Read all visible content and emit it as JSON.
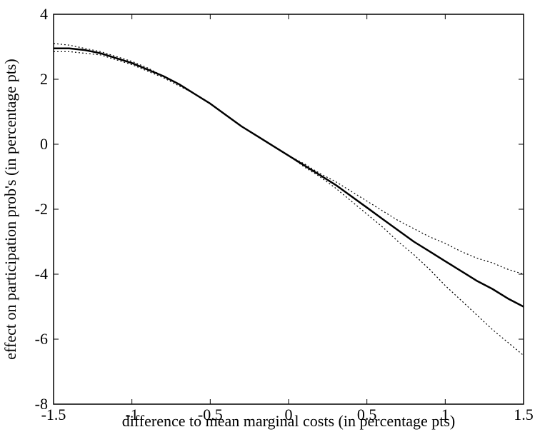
{
  "chart_data": {
    "type": "line",
    "title": "",
    "xlabel": "difference to mean marginal costs (in percentage pts)",
    "ylabel": "effect on participation prob's (in percentage pts)",
    "xlim": [
      -1.5,
      1.5
    ],
    "ylim": [
      -8,
      4
    ],
    "x_ticks": [
      "-1.5",
      "-1",
      "-0.5",
      "0",
      "0.5",
      "1",
      "1.5"
    ],
    "y_ticks": [
      "4",
      "2",
      "0",
      "-2",
      "-4",
      "-6",
      "-8"
    ],
    "grid": false,
    "legend": "none",
    "colors": {
      "line": "#000000",
      "background": "#ffffff"
    },
    "series": [
      {
        "style": "solid",
        "x": [
          -1.5,
          -1.4,
          -1.3,
          -1.2,
          -1.1,
          -1.0,
          -0.9,
          -0.8,
          -0.7,
          -0.6,
          -0.5,
          -0.4,
          -0.3,
          -0.2,
          -0.1,
          0.0,
          0.1,
          0.2,
          0.3,
          0.4,
          0.5,
          0.6,
          0.7,
          0.8,
          0.9,
          1.0,
          1.1,
          1.2,
          1.3,
          1.4,
          1.5
        ],
        "y": [
          2.95,
          2.95,
          2.9,
          2.8,
          2.65,
          2.5,
          2.3,
          2.1,
          1.85,
          1.55,
          1.25,
          0.9,
          0.55,
          0.25,
          -0.05,
          -0.35,
          -0.65,
          -0.95,
          -1.25,
          -1.6,
          -1.95,
          -2.3,
          -2.65,
          -3.0,
          -3.3,
          -3.6,
          -3.9,
          -4.2,
          -4.45,
          -4.75,
          -5.0
        ]
      },
      {
        "style": "dotted",
        "x": [
          -1.5,
          -1.4,
          -1.3,
          -1.2,
          -1.1,
          -1.0,
          -0.9,
          -0.8,
          -0.7,
          -0.6,
          -0.5,
          -0.4,
          -0.3,
          -0.2,
          -0.1,
          0.0,
          0.1,
          0.2,
          0.3,
          0.4,
          0.5,
          0.6,
          0.7,
          0.8,
          0.9,
          1.0,
          1.1,
          1.2,
          1.3,
          1.4,
          1.5
        ],
        "y": [
          3.1,
          3.05,
          2.95,
          2.85,
          2.7,
          2.55,
          2.35,
          2.1,
          1.85,
          1.55,
          1.25,
          0.9,
          0.55,
          0.25,
          -0.05,
          -0.35,
          -0.6,
          -0.9,
          -1.15,
          -1.45,
          -1.75,
          -2.05,
          -2.35,
          -2.6,
          -2.85,
          -3.05,
          -3.3,
          -3.5,
          -3.65,
          -3.85,
          -4.0
        ]
      },
      {
        "style": "dotted",
        "x": [
          -1.5,
          -1.4,
          -1.3,
          -1.2,
          -1.1,
          -1.0,
          -0.9,
          -0.8,
          -0.7,
          -0.6,
          -0.5,
          -0.4,
          -0.3,
          -0.2,
          -0.1,
          0.0,
          0.1,
          0.2,
          0.3,
          0.4,
          0.5,
          0.6,
          0.7,
          0.8,
          0.9,
          1.0,
          1.1,
          1.2,
          1.3,
          1.4,
          1.5
        ],
        "y": [
          2.85,
          2.85,
          2.8,
          2.75,
          2.6,
          2.45,
          2.25,
          2.05,
          1.8,
          1.55,
          1.25,
          0.9,
          0.55,
          0.25,
          -0.05,
          -0.35,
          -0.7,
          -1.0,
          -1.35,
          -1.75,
          -2.15,
          -2.55,
          -3.0,
          -3.4,
          -3.85,
          -4.35,
          -4.8,
          -5.25,
          -5.7,
          -6.1,
          -6.5
        ]
      }
    ]
  }
}
